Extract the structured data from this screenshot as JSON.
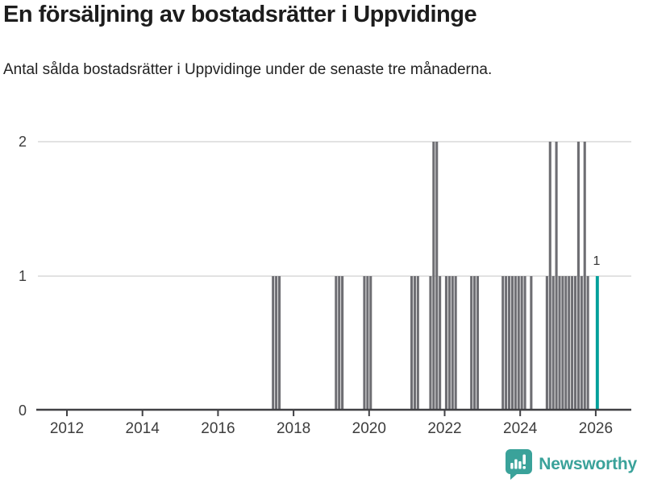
{
  "header": {
    "title": "En försäljning av bostadsrätter i Uppvidinge",
    "subtitle": "Antal sålda bostadsrätter i Uppvidinge under de senaste tre månaderna."
  },
  "footer": {
    "brand": "Newsworthy",
    "logo_icon": "newsworthy-speech-bubble-bar-chart-icon"
  },
  "colors": {
    "bar": "#6e6e73",
    "highlight": "#00a09b",
    "brand": "#3aa29a",
    "grid": "#e2e2e2",
    "axis": "#414144",
    "tick_text": "#3d3d3d",
    "label_text": "#333333"
  },
  "chart_data": {
    "type": "bar",
    "title": "En försäljning av bostadsrätter i Uppvidinge",
    "subtitle": "Antal sålda bostadsrätter i Uppvidinge under de senaste tre månaderna.",
    "xlabel": "",
    "ylabel": "",
    "ylim": [
      0,
      2
    ],
    "yticks": [
      0,
      1,
      2
    ],
    "xticks": [
      2012,
      2014,
      2016,
      2018,
      2020,
      2022,
      2024,
      2026
    ],
    "x_domain_years": [
      2011.2,
      2027.0
    ],
    "grid": "horizontal",
    "legend": "none",
    "bars": [
      {
        "month": "2017-06",
        "value": 1
      },
      {
        "month": "2017-07",
        "value": 1
      },
      {
        "month": "2017-08",
        "value": 1
      },
      {
        "month": "2019-02",
        "value": 1
      },
      {
        "month": "2019-03",
        "value": 1
      },
      {
        "month": "2019-04",
        "value": 1
      },
      {
        "month": "2019-11",
        "value": 1
      },
      {
        "month": "2019-12",
        "value": 1
      },
      {
        "month": "2020-01",
        "value": 1
      },
      {
        "month": "2021-02",
        "value": 1
      },
      {
        "month": "2021-03",
        "value": 1
      },
      {
        "month": "2021-04",
        "value": 1
      },
      {
        "month": "2021-08",
        "value": 1
      },
      {
        "month": "2021-09",
        "value": 2
      },
      {
        "month": "2021-10",
        "value": 2
      },
      {
        "month": "2021-11",
        "value": 1
      },
      {
        "month": "2022-01",
        "value": 1
      },
      {
        "month": "2022-02",
        "value": 1
      },
      {
        "month": "2022-03",
        "value": 1
      },
      {
        "month": "2022-04",
        "value": 1
      },
      {
        "month": "2022-09",
        "value": 1
      },
      {
        "month": "2022-10",
        "value": 1
      },
      {
        "month": "2022-11",
        "value": 1
      },
      {
        "month": "2023-07",
        "value": 1
      },
      {
        "month": "2023-08",
        "value": 1
      },
      {
        "month": "2023-09",
        "value": 1
      },
      {
        "month": "2023-10",
        "value": 1
      },
      {
        "month": "2023-11",
        "value": 1
      },
      {
        "month": "2023-12",
        "value": 1
      },
      {
        "month": "2024-01",
        "value": 1
      },
      {
        "month": "2024-02",
        "value": 1
      },
      {
        "month": "2024-04",
        "value": 1
      },
      {
        "month": "2024-09",
        "value": 1
      },
      {
        "month": "2024-10",
        "value": 2
      },
      {
        "month": "2024-11",
        "value": 1
      },
      {
        "month": "2024-12",
        "value": 2
      },
      {
        "month": "2025-01",
        "value": 1
      },
      {
        "month": "2025-02",
        "value": 1
      },
      {
        "month": "2025-03",
        "value": 1
      },
      {
        "month": "2025-04",
        "value": 1
      },
      {
        "month": "2025-05",
        "value": 1
      },
      {
        "month": "2025-06",
        "value": 1
      },
      {
        "month": "2025-07",
        "value": 2
      },
      {
        "month": "2025-08",
        "value": 1
      },
      {
        "month": "2025-09",
        "value": 2
      },
      {
        "month": "2025-10",
        "value": 1
      }
    ],
    "highlight": {
      "month": "2026-01",
      "value": 1,
      "label": "1"
    }
  }
}
